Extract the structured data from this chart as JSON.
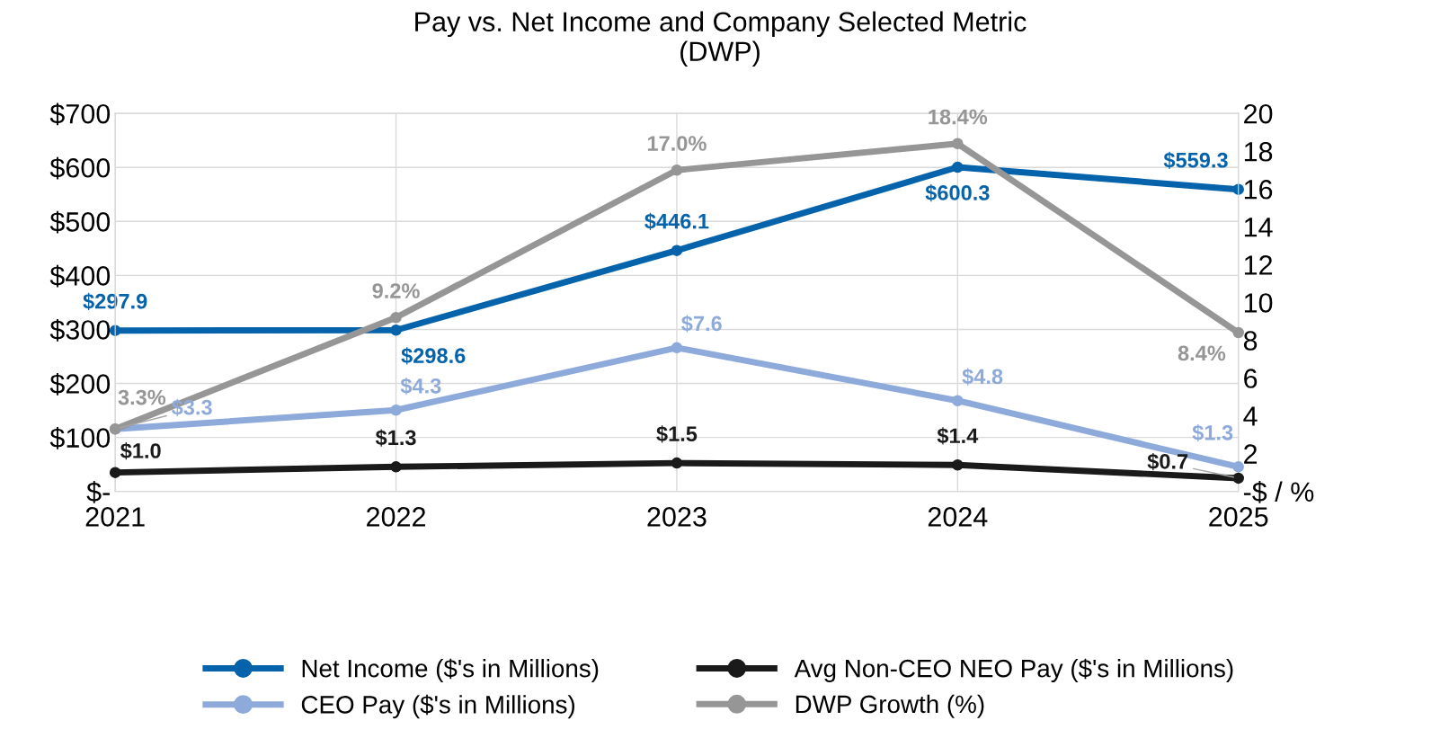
{
  "chart_data": {
    "type": "line",
    "title": "Pay vs. Net Income and Company Selected Metric\n(DWP)",
    "categories": [
      "2021",
      "2022",
      "2023",
      "2024",
      "2025"
    ],
    "series": [
      {
        "name": "Net Income ($'s in Millions)",
        "color": "#0563ab",
        "values": [
          297.9,
          298.6,
          446.1,
          600.3,
          559.3
        ],
        "value_labels": [
          "$297.9",
          "$298.6",
          "$446.1",
          "$600.3",
          "$559.3"
        ]
      },
      {
        "name": "CEO Pay ($'s in Millions)",
        "color": "#8eaadb",
        "axis": "y2",
        "values": [
          3.3,
          4.3,
          7.6,
          4.8,
          1.3
        ],
        "value_labels": [
          "$3.3",
          "$4.3",
          "$7.6",
          "$4.8",
          "$1.3"
        ]
      },
      {
        "name": "Avg Non-CEO NEO Pay ($'s in Millions)",
        "color": "#1a1a1a",
        "axis": "y2",
        "values": [
          1.0,
          1.3,
          1.5,
          1.4,
          0.7
        ],
        "value_labels": [
          "$1.0",
          "$1.3",
          "$1.5",
          "$1.4",
          "$0.7"
        ]
      },
      {
        "name": "DWP Growth (%)",
        "color": "#969696",
        "axis": "y2",
        "values": [
          3.3,
          9.2,
          17.0,
          18.4,
          8.4
        ],
        "value_labels": [
          "3.3%",
          "9.2%",
          "17.0%",
          "18.4%",
          "8.4%"
        ]
      }
    ],
    "ylim": [
      0,
      700
    ],
    "yticks": [
      {
        "value": 0,
        "label": "$-"
      },
      {
        "value": 100,
        "label": "$100"
      },
      {
        "value": 200,
        "label": "$200"
      },
      {
        "value": 300,
        "label": "$300"
      },
      {
        "value": 400,
        "label": "$400"
      },
      {
        "value": 500,
        "label": "$500"
      },
      {
        "value": 600,
        "label": "$600"
      },
      {
        "value": 700,
        "label": "$700"
      }
    ],
    "y2lim": [
      0,
      20
    ],
    "y2ticks": [
      {
        "value": 0,
        "label": "-$ / %"
      },
      2,
      4,
      6,
      8,
      10,
      12,
      14,
      16,
      18,
      20
    ],
    "grid": true,
    "legend": "bottom",
    "marker": "circle",
    "line_style": "solid"
  }
}
